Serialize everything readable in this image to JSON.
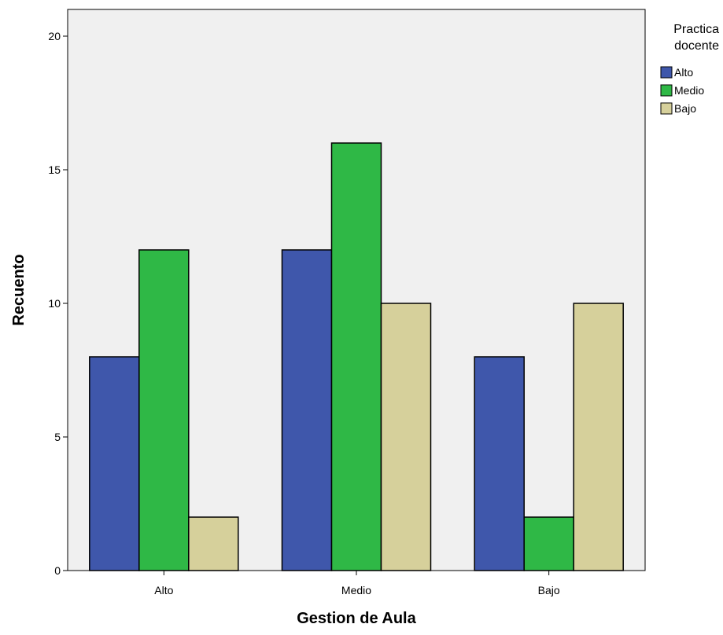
{
  "chart_data": {
    "type": "bar",
    "categories": [
      "Alto",
      "Medio",
      "Bajo"
    ],
    "series": [
      {
        "name": "Alto",
        "color": "#3f57ab",
        "values": [
          8,
          12,
          8
        ]
      },
      {
        "name": "Medio",
        "color": "#2fb846",
        "values": [
          12,
          16,
          2
        ]
      },
      {
        "name": "Bajo",
        "color": "#d6d09b",
        "values": [
          2,
          10,
          10
        ]
      }
    ],
    "xlabel": "Gestion de Aula",
    "ylabel": "Recuento",
    "ylim": [
      0,
      21
    ],
    "yticks": [
      0,
      5,
      10,
      15,
      20
    ],
    "legend": {
      "title_lines": [
        "Practica",
        "docente"
      ],
      "placement": "right-top"
    },
    "plot_background": "#f0f0f0",
    "grid": false
  }
}
